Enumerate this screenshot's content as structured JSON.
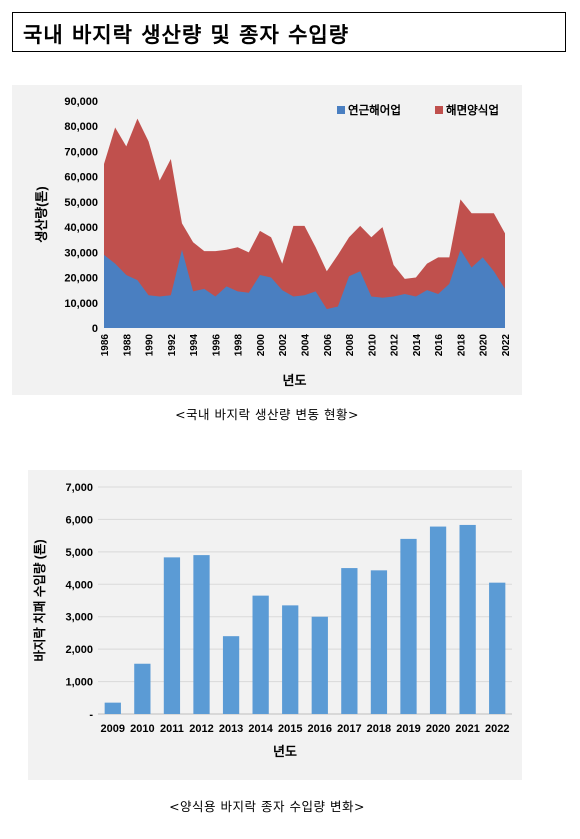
{
  "page": {
    "title": "국내 바지락 생산량 및 종자 수입량"
  },
  "chart_data": [
    {
      "type": "area",
      "stacked": true,
      "xlabel": "년도",
      "ylabel": "생산량(톤)",
      "ylim": [
        0,
        90000
      ],
      "yticks": [
        "0",
        "10,000",
        "20,000",
        "30,000",
        "40,000",
        "50,000",
        "60,000",
        "70,000",
        "80,000",
        "90,000"
      ],
      "xtick_labels": [
        "1986",
        "1988",
        "1990",
        "1992",
        "1994",
        "1996",
        "1998",
        "2000",
        "2002",
        "2004",
        "2006",
        "2008",
        "2010",
        "2012",
        "2014",
        "2016",
        "2018",
        "2020",
        "2022"
      ],
      "legend_position": "top-right",
      "x": [
        1986,
        1987,
        1988,
        1989,
        1990,
        1991,
        1992,
        1993,
        1994,
        1995,
        1996,
        1997,
        1998,
        1999,
        2000,
        2001,
        2002,
        2003,
        2004,
        2005,
        2006,
        2007,
        2008,
        2009,
        2010,
        2011,
        2012,
        2013,
        2014,
        2015,
        2016,
        2017,
        2018,
        2019,
        2020,
        2021,
        2022
      ],
      "series": [
        {
          "name": "연근해어업",
          "color": "#4a7fc1",
          "values": [
            29000,
            25500,
            21000,
            19000,
            13000,
            12500,
            13000,
            31000,
            14500,
            15500,
            12500,
            16500,
            14500,
            14000,
            21000,
            20000,
            15000,
            12500,
            13000,
            14500,
            7500,
            8500,
            20500,
            22500,
            12500,
            12000,
            12500,
            13500,
            12500,
            15000,
            13500,
            17500,
            31000,
            24000,
            28000,
            22500,
            15500
          ]
        },
        {
          "name": "해면양식업",
          "color": "#c0504d",
          "values": [
            36000,
            54000,
            51000,
            64000,
            61000,
            46000,
            54000,
            10500,
            19500,
            15000,
            18000,
            14500,
            17500,
            16000,
            17500,
            16000,
            10500,
            28000,
            27500,
            17500,
            15000,
            20500,
            15500,
            18000,
            23500,
            28000,
            12500,
            6000,
            7500,
            10500,
            14500,
            10500,
            20000,
            21500,
            17500,
            23000,
            22000
          ]
        }
      ]
    },
    {
      "type": "bar",
      "xlabel": "년도",
      "ylabel": "바지락 치패 수입량 (톤)",
      "ylim": [
        0,
        7000
      ],
      "yticks": [
        "-",
        "1,000",
        "2,000",
        "3,000",
        "4,000",
        "5,000",
        "6,000",
        "7,000"
      ],
      "categories": [
        "2009",
        "2010",
        "2011",
        "2012",
        "2013",
        "2014",
        "2015",
        "2016",
        "2017",
        "2018",
        "2019",
        "2020",
        "2021",
        "2022"
      ],
      "bar_color": "#5b9bd5",
      "values": [
        350,
        1550,
        4830,
        4900,
        2400,
        3650,
        3350,
        3000,
        4500,
        4430,
        5400,
        5780,
        5830,
        4050
      ]
    }
  ],
  "captions": {
    "chart1": "<국내 바지락 생산량 변동 현황>",
    "chart2": "<양식용 바지락 종자 수입량 변화>"
  }
}
